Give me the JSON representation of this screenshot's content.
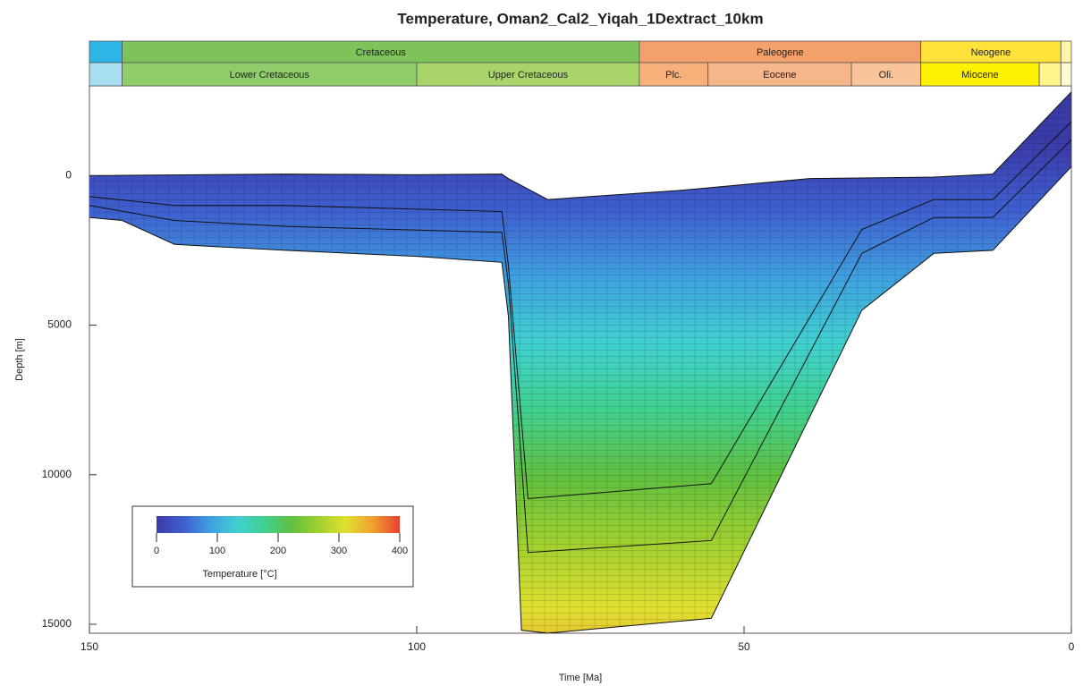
{
  "chart_data": {
    "type": "burial",
    "title": "Temperature, Oman2_Cal2_Yiqah_1Dextract_10km",
    "x_label": "Time [Ma]",
    "y_label": "Depth [m]",
    "xlim": [
      150,
      0
    ],
    "ylim": [
      -3000,
      15300
    ],
    "xticks": [
      150,
      100,
      50,
      0
    ],
    "yticks": [
      0,
      5000,
      10000,
      15000
    ],
    "timescale": [
      [
        {
          "name": null,
          "start": 150,
          "end": 145,
          "color": "#2db7e8"
        },
        {
          "name": "Cretaceous",
          "start": 145,
          "end": 66,
          "color": "#7dc35a"
        },
        {
          "name": "Paleogene",
          "start": 66,
          "end": 23,
          "color": "#f4a06a"
        },
        {
          "name": "Neogene",
          "start": 23,
          "end": 1.6,
          "color": "#ffe33a"
        },
        {
          "name": null,
          "start": 1.6,
          "end": 0,
          "color": "#fff6a8"
        }
      ],
      [
        {
          "name": null,
          "start": 150,
          "end": 145,
          "color": "#a8dff0"
        },
        {
          "name": "Lower Cretaceous",
          "start": 145,
          "end": 100,
          "color": "#8fcc6a"
        },
        {
          "name": "Upper Cretaceous",
          "start": 100,
          "end": 66,
          "color": "#a8d56a"
        },
        {
          "name": "Plc.",
          "start": 66,
          "end": 55.5,
          "color": "#f7b07a"
        },
        {
          "name": "Eocene",
          "start": 55.5,
          "end": 33.6,
          "color": "#f7b58a"
        },
        {
          "name": "Oli.",
          "start": 33.6,
          "end": 23,
          "color": "#f9c49a"
        },
        {
          "name": "Miocene",
          "start": 23,
          "end": 4.9,
          "color": "#fff200"
        },
        {
          "name": null,
          "start": 4.9,
          "end": 1.6,
          "color": "#fff58a"
        },
        {
          "name": null,
          "start": 1.6,
          "end": 0,
          "color": "#fffbd0"
        }
      ]
    ],
    "horizons": [
      {
        "x": [
          150,
          120,
          100,
          87,
          86,
          80,
          60,
          40,
          21,
          12,
          0
        ],
        "values": [
          0,
          -50,
          -30,
          -50,
          100,
          800,
          500,
          100,
          50,
          -50,
          -2800
        ]
      },
      {
        "x": [
          150,
          137,
          120,
          87,
          86,
          83,
          55,
          32,
          21,
          12,
          0
        ],
        "values": [
          700,
          1000,
          1000,
          1200,
          3000,
          10800,
          10300,
          1800,
          800,
          800,
          -1800
        ]
      },
      {
        "x": [
          150,
          137,
          120,
          87,
          86,
          83,
          55,
          32,
          21,
          12,
          0
        ],
        "values": [
          1000,
          1500,
          1700,
          1900,
          3600,
          12600,
          12200,
          2600,
          1400,
          1400,
          -1200
        ]
      },
      {
        "x": [
          150,
          145,
          137,
          120,
          100,
          87,
          86,
          84,
          80,
          55,
          32,
          21,
          12,
          0
        ],
        "values": [
          1400,
          1500,
          2300,
          2500,
          2700,
          2900,
          4700,
          15200,
          15300,
          14800,
          4500,
          2600,
          2500,
          -300
        ]
      }
    ],
    "colorbar": {
      "title": "Temperature [°C]",
      "lim": [
        0,
        400
      ],
      "ticks": [
        0,
        100,
        200,
        300,
        400
      ],
      "colors": [
        "#3b3ba8",
        "#3f5fd0",
        "#3fa0e0",
        "#40d0d0",
        "#40d090",
        "#60c040",
        "#a0d030",
        "#e0e030",
        "#f0a030",
        "#e84030"
      ]
    }
  }
}
